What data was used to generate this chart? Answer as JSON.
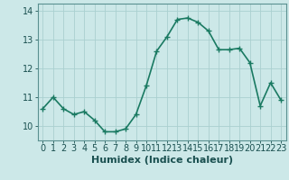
{
  "x": [
    0,
    1,
    2,
    3,
    4,
    5,
    6,
    7,
    8,
    9,
    10,
    11,
    12,
    13,
    14,
    15,
    16,
    17,
    18,
    19,
    20,
    21,
    22,
    23
  ],
  "y": [
    10.6,
    11.0,
    10.6,
    10.4,
    10.5,
    10.2,
    9.8,
    9.8,
    9.9,
    10.4,
    11.4,
    12.6,
    13.1,
    13.7,
    13.75,
    13.6,
    13.3,
    12.65,
    12.65,
    12.7,
    12.2,
    10.7,
    11.5,
    10.9
  ],
  "line_color": "#1a7a62",
  "marker": "+",
  "marker_size": 4,
  "background_color": "#cce8e8",
  "grid_color": "#aad0d0",
  "xlabel": "Humidex (Indice chaleur)",
  "xlim": [
    -0.5,
    23.5
  ],
  "ylim": [
    9.5,
    14.25
  ],
  "yticks": [
    10,
    11,
    12,
    13,
    14
  ],
  "xticks": [
    0,
    1,
    2,
    3,
    4,
    5,
    6,
    7,
    8,
    9,
    10,
    11,
    12,
    13,
    14,
    15,
    16,
    17,
    18,
    19,
    20,
    21,
    22,
    23
  ],
  "xlabel_fontsize": 8,
  "tick_fontsize": 7,
  "linewidth": 1.2,
  "spine_color": "#5a9090"
}
